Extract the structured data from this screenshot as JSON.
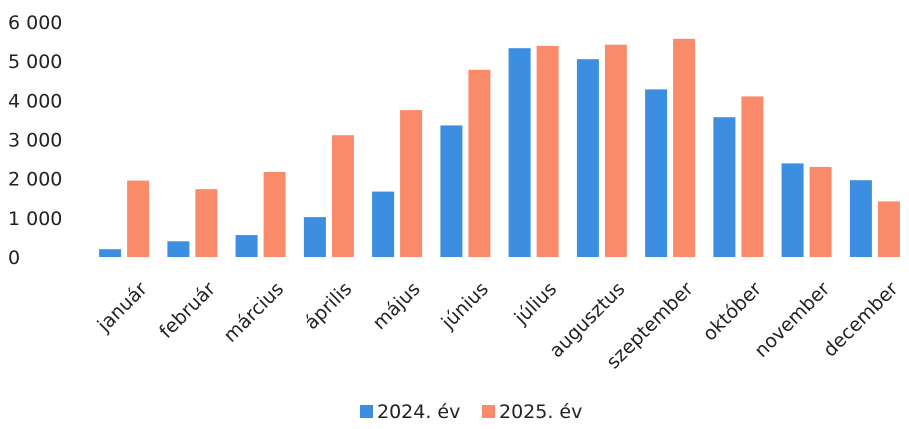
{
  "chart_data": {
    "type": "bar",
    "categories": [
      "január",
      "február",
      "március",
      "április",
      "május",
      "június",
      "július",
      "augusztus",
      "szeptember",
      "október",
      "november",
      "december"
    ],
    "series": [
      {
        "name": "2024. év",
        "color": "#3b8ee0",
        "values": [
          200,
          400,
          560,
          1020,
          1670,
          3360,
          5330,
          5050,
          4280,
          3570,
          2390,
          1960
        ]
      },
      {
        "name": "2025. év",
        "color": "#f98b6a",
        "values": [
          1950,
          1730,
          2170,
          3110,
          3750,
          4780,
          5390,
          5420,
          5570,
          4100,
          2300,
          1420
        ]
      }
    ],
    "yticks": [
      "0",
      "1 000",
      "2 000",
      "3 000",
      "4 000",
      "5 000",
      "6 000"
    ],
    "ylim": [
      0,
      6000
    ],
    "grid": false,
    "legend_position": "bottom"
  }
}
